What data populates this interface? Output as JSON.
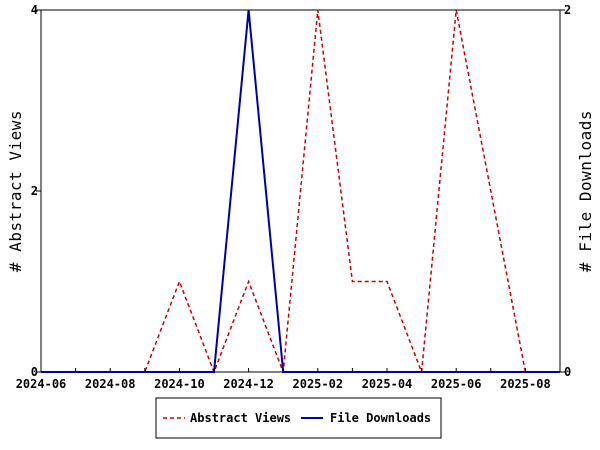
{
  "chart_data": {
    "type": "line",
    "x": [
      "2024-06",
      "2024-07",
      "2024-08",
      "2024-09",
      "2024-10",
      "2024-11",
      "2024-12",
      "2025-01",
      "2025-02",
      "2025-03",
      "2025-04",
      "2025-05",
      "2025-06",
      "2025-07",
      "2025-08",
      "2025-09"
    ],
    "x_ticks": [
      "2024-06",
      "2024-08",
      "2024-10",
      "2024-12",
      "2025-02",
      "2025-04",
      "2025-06",
      "2025-08"
    ],
    "series": [
      {
        "name": "Abstract Views",
        "axis": "left",
        "color": "#cc0000",
        "style": "dashed",
        "values": [
          0,
          0,
          0,
          0,
          1,
          0,
          1,
          0,
          4,
          1,
          1,
          0,
          4,
          2,
          0,
          0
        ]
      },
      {
        "name": "File Downloads",
        "axis": "right",
        "color": "#0000aa",
        "style": "solid",
        "values": [
          0,
          0,
          0,
          0,
          0,
          0,
          2,
          0,
          0,
          0,
          0,
          0,
          0,
          0,
          0,
          0
        ]
      }
    ],
    "ylabel_left": "# Abstract Views",
    "ylabel_right": "# File Downloads",
    "ylim_left": [
      0,
      4
    ],
    "ylim_right": [
      0,
      2
    ],
    "yticks_left": [
      "0",
      "2",
      "4"
    ],
    "yticks_right": [
      "0",
      "2"
    ],
    "grid": false,
    "legend_position": "bottom-center"
  }
}
